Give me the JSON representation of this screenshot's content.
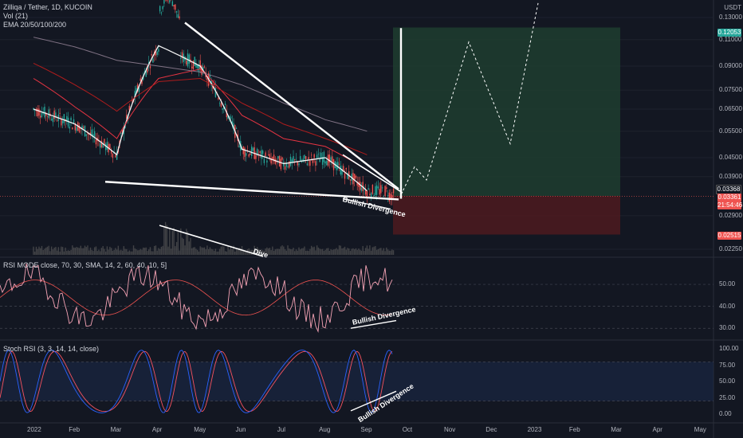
{
  "legend": {
    "symbol_line": "Zilliqa / Tether, 1D, KUCOIN",
    "vol_line": "Vol (21)",
    "ema_line": "EMA 20/50/100/200"
  },
  "rsi_title": "RSI MODE",
  "rsi_title_tail": "close, 70, 30, SMA, 14, 2, 60, 40, 10, 5]",
  "stoch_title": "Stoch RSI (3, 3, 14, 14, close)",
  "price_axis_unit": "USDT",
  "price_tags": {
    "target": "0.12053",
    "current_a": "0.03368",
    "current_b": "0.03361",
    "countdown": "21:54:46",
    "stop": "0.02515"
  },
  "annotations": {
    "bullish_1": "Bullish Divergence",
    "bullish_2": "Bullish Divergence",
    "bullish_3": "Bullish Divergence",
    "volume_div": "Dive"
  },
  "colors": {
    "background": "#131722",
    "up_candle": "#26a69a",
    "down_candle": "#ef5350",
    "ema20": "#ffffff",
    "ema50": "#f23645",
    "ema100": "#b71c1c",
    "ema200": "#9c8a9e",
    "target_zone": "#1e3d2f",
    "stop_zone": "#4a1a1f",
    "rsi_line": "#f5a3b5",
    "stoch_k": "#2962ff",
    "stoch_d": "#f7525f"
  },
  "chart_data": [
    {
      "type": "line",
      "pane": "price",
      "title": "Zilliqa / Tether, 1D, KUCOIN",
      "yscale": "log",
      "ylabel": "USDT",
      "y_ticks": [
        "0.13000",
        "0.11000",
        "0.09000",
        "0.07500",
        "0.06500",
        "0.05500",
        "0.04500",
        "0.03900",
        "0.02900",
        "0.02250"
      ],
      "x_ticks": [
        "2022",
        "Feb",
        "Mar",
        "Apr",
        "May",
        "Jun",
        "Jul",
        "Aug",
        "Sep",
        "Oct",
        "Nov",
        "Dec",
        "2023",
        "Feb",
        "Mar",
        "Apr",
        "May"
      ],
      "series": [
        {
          "name": "EMA 20",
          "x": [
            "2022-01",
            "2022-02",
            "2022-03",
            "2022-04",
            "2022-05",
            "2022-06",
            "2022-07",
            "2022-08",
            "2022-09"
          ],
          "values": [
            0.065,
            0.058,
            0.046,
            0.105,
            0.09,
            0.048,
            0.043,
            0.045,
            0.035
          ]
        },
        {
          "name": "EMA 50",
          "x": [
            "2022-01",
            "2022-02",
            "2022-03",
            "2022-04",
            "2022-05",
            "2022-06",
            "2022-07",
            "2022-08",
            "2022-09"
          ],
          "values": [
            0.082,
            0.066,
            0.052,
            0.082,
            0.088,
            0.062,
            0.052,
            0.049,
            0.041
          ]
        },
        {
          "name": "EMA 100",
          "x": [
            "2022-01",
            "2022-02",
            "2022-03",
            "2022-04",
            "2022-05",
            "2022-06",
            "2022-07",
            "2022-08",
            "2022-09"
          ],
          "values": [
            0.092,
            0.078,
            0.064,
            0.08,
            0.082,
            0.068,
            0.058,
            0.052,
            0.046
          ]
        },
        {
          "name": "EMA 200",
          "x": [
            "2022-01",
            "2022-02",
            "2022-03",
            "2022-04",
            "2022-05",
            "2022-06",
            "2022-07",
            "2022-08",
            "2022-09"
          ],
          "values": [
            0.112,
            0.104,
            0.094,
            0.09,
            0.086,
            0.078,
            0.068,
            0.06,
            0.055
          ]
        }
      ],
      "target_zone": [
        0.03368,
        0.12053
      ],
      "stop_zone": [
        0.02515,
        0.03368
      ]
    },
    {
      "type": "line",
      "pane": "rsi",
      "title": "RSI MODE",
      "y_ticks": [
        "50.00",
        "40.00",
        "30.00"
      ],
      "ylim": [
        25,
        62
      ]
    },
    {
      "type": "line",
      "pane": "stoch_rsi",
      "title": "Stoch RSI (3, 3, 14, 14, close)",
      "y_ticks": [
        "100.00",
        "75.00",
        "50.00",
        "25.00",
        "0.00"
      ],
      "ylim": [
        0,
        100
      ]
    }
  ],
  "axes": {
    "price_ticks": [
      "0.13000",
      "0.11000",
      "0.09000",
      "0.07500",
      "0.06500",
      "0.05500",
      "0.04500",
      "0.03900",
      "0.02900",
      "0.02250"
    ],
    "rsi_ticks": [
      "50.00",
      "40.00",
      "30.00"
    ],
    "stoch_ticks": [
      "100.00",
      "75.00",
      "50.00",
      "25.00",
      "0.00"
    ],
    "time_ticks": [
      "2022",
      "Feb",
      "Mar",
      "Apr",
      "May",
      "Jun",
      "Jul",
      "Aug",
      "Sep",
      "Oct",
      "Nov",
      "Dec",
      "2023",
      "Feb",
      "Mar",
      "Apr",
      "May"
    ]
  }
}
